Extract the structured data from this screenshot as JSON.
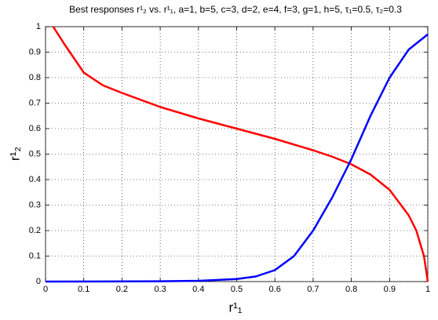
{
  "chart_data": {
    "type": "line",
    "title": "Best responses r¹₂ vs. r¹₁, a=1, b=5, c=3, d=2, e=4, f=3, g=1, h=5, τ₁=0.5, τ₂=0.3",
    "x_label": "r¹₁",
    "y_label": "r¹₂",
    "series": [
      {
        "color": "#ff0000",
        "x": [
          0.02,
          0.05,
          0.1,
          0.15,
          0.2,
          0.3,
          0.4,
          0.5,
          0.6,
          0.7,
          0.75,
          0.8,
          0.85,
          0.9,
          0.95,
          0.97,
          0.99,
          1.0
        ],
        "values": [
          1,
          0.93,
          0.82,
          0.77,
          0.74,
          0.685,
          0.64,
          0.6,
          0.56,
          0.515,
          0.49,
          0.46,
          0.42,
          0.36,
          0.26,
          0.2,
          0.1,
          0
        ]
      },
      {
        "color": "#0000ff",
        "x": [
          0,
          0.3,
          0.4,
          0.5,
          0.55,
          0.6,
          0.65,
          0.7,
          0.75,
          0.8,
          0.85,
          0.9,
          0.95,
          1.0
        ],
        "values": [
          0,
          0.001,
          0.003,
          0.01,
          0.02,
          0.045,
          0.1,
          0.2,
          0.33,
          0.48,
          0.65,
          0.8,
          0.91,
          0.97
        ]
      }
    ],
    "xlim": [
      0,
      1
    ],
    "ylim": [
      0,
      1
    ],
    "xticks": [
      0,
      0.1,
      0.2,
      0.3,
      0.4,
      0.5,
      0.6,
      0.7,
      0.8,
      0.9,
      1
    ],
    "yticks": [
      0,
      0.1,
      0.2,
      0.3,
      0.4,
      0.5,
      0.6,
      0.7,
      0.8,
      0.9,
      1
    ],
    "grid": true
  }
}
